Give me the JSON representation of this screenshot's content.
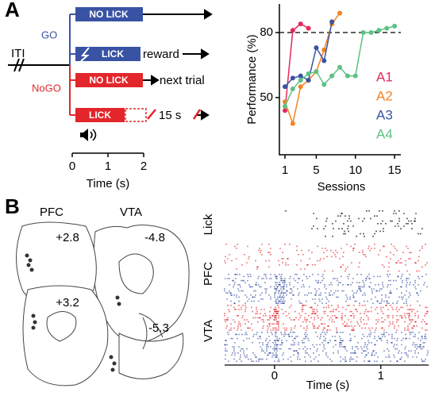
{
  "panel_a": {
    "label": "A",
    "iti": "ITI",
    "go": "GO",
    "nogo": "NoGO",
    "trials": [
      {
        "action": "NO LICK"
      },
      {
        "action": "LICK",
        "outcome": "reward"
      },
      {
        "action": "NO LICK",
        "outcome": "next trial"
      },
      {
        "action": "LICK",
        "outcome": "15 s"
      }
    ],
    "time_axis": {
      "label": "Time (s)",
      "xlim": [
        0,
        2
      ],
      "xticks": [
        0,
        1,
        2
      ]
    }
  },
  "chart_data": {
    "type": "line",
    "ylabel": "Performance (%)",
    "xlabel": "Sessions",
    "x": [
      1,
      2,
      3,
      4,
      5,
      6,
      7,
      8,
      9,
      10,
      11,
      12,
      13,
      14,
      15
    ],
    "xlim": [
      0.29,
      15.8
    ],
    "ylim": [
      23.6,
      93.2
    ],
    "xticks": [
      1,
      5,
      10,
      15
    ],
    "yticks": [
      50,
      80
    ],
    "threshold": 80,
    "series": [
      {
        "name": "A1",
        "color": "#e8265a",
        "values": [
          44,
          81,
          84,
          82,
          null,
          null,
          null,
          null,
          null,
          null,
          null,
          null,
          null,
          null,
          null
        ]
      },
      {
        "name": "A2",
        "color": "#f58220",
        "values": [
          48,
          38,
          55,
          58,
          62,
          72,
          84,
          89,
          null,
          null,
          null,
          null,
          null,
          null,
          null
        ]
      },
      {
        "name": "A3",
        "color": "#3953a4",
        "values": [
          55,
          59,
          60,
          58,
          73,
          67,
          85,
          null,
          null,
          null,
          null,
          null,
          null,
          null,
          null
        ]
      },
      {
        "name": "A4",
        "color": "#5dc184",
        "values": [
          46,
          54,
          58,
          61,
          62,
          56,
          60,
          64,
          60,
          60,
          80,
          80,
          81,
          82,
          83
        ]
      }
    ]
  },
  "panel_b": {
    "label": "B",
    "regions": [
      "PFC",
      "VTA"
    ],
    "sections": [
      "+2.8",
      "-4.8",
      "+3.2",
      "-5.3"
    ],
    "raster": {
      "rows": [
        "Lick",
        "PFC",
        "VTA"
      ],
      "xlabel": "Time (s)",
      "xlim": [
        -0.47,
        1.45
      ],
      "xticks": [
        0,
        1
      ]
    }
  }
}
